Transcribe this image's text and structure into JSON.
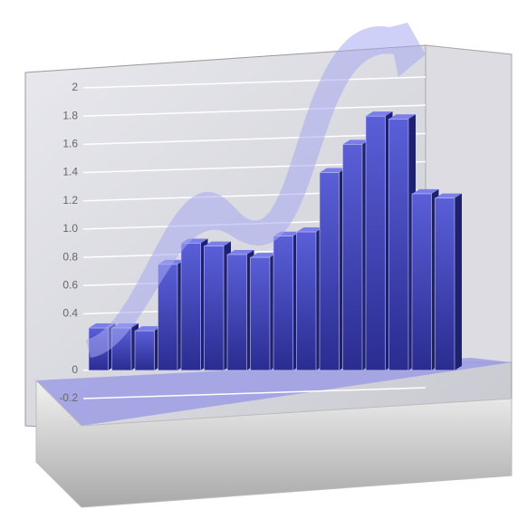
{
  "chart_data": {
    "type": "bar",
    "categories": [
      null,
      null,
      null,
      null,
      null,
      null,
      null,
      null,
      null,
      null,
      null,
      null,
      null,
      null,
      null,
      null
    ],
    "values": [
      0.3,
      0.3,
      0.28,
      0.75,
      0.9,
      0.88,
      0.82,
      0.8,
      0.95,
      0.98,
      1.4,
      1.6,
      1.8,
      1.78,
      1.25,
      1.22
    ],
    "color": "#3a3fb8",
    "ylim": [
      -0.2,
      2
    ],
    "yticks": [
      {
        "value": -0.2,
        "label": "-0.2"
      },
      0,
      {
        "value": 0.4,
        "label": "0.4"
      },
      {
        "value": 0.6,
        "label": "0.6"
      },
      {
        "value": 0.8,
        "label": "0.8"
      },
      {
        "value": 1,
        "label": "1.0"
      },
      {
        "value": 1.2,
        "label": "1.2"
      },
      {
        "value": 1.4,
        "label": "1.4"
      },
      {
        "value": 1.6,
        "label": "1.6"
      },
      {
        "value": 1.8,
        "label": "1.8"
      },
      2
    ],
    "grid": true
  }
}
